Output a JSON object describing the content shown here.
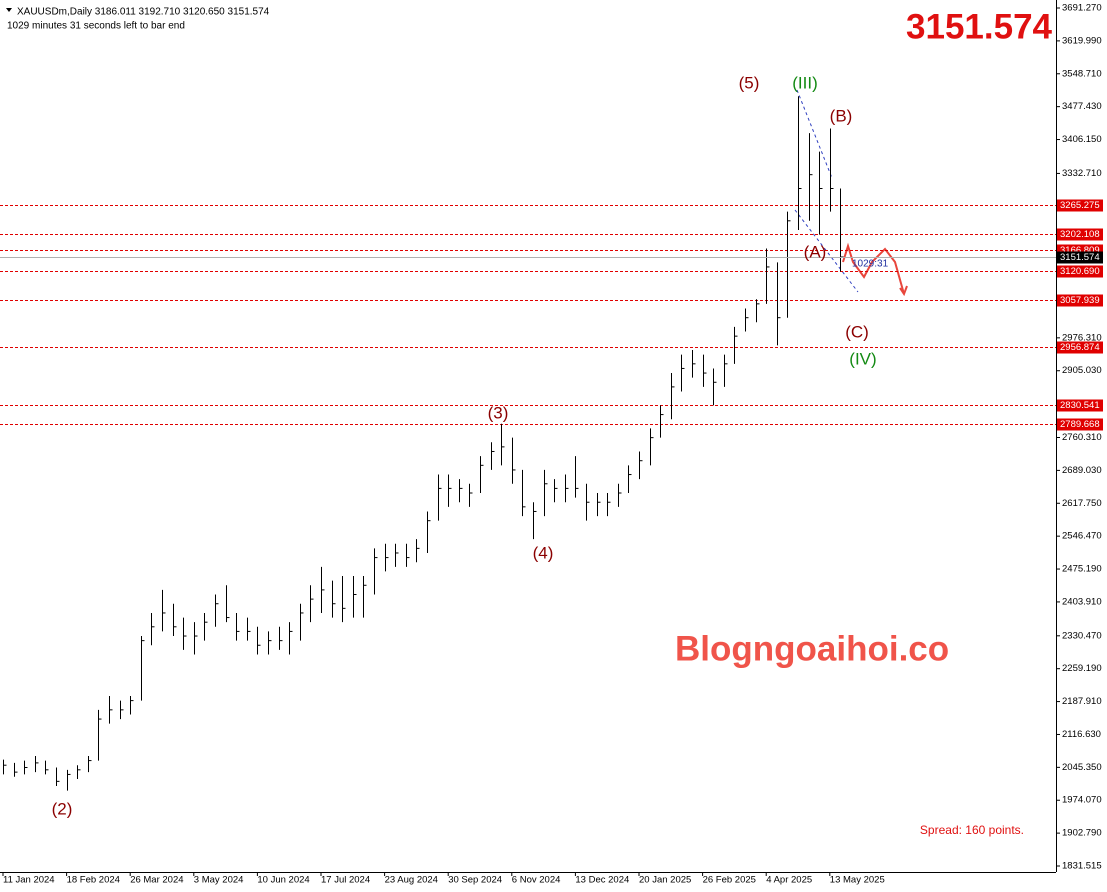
{
  "chart_data": {
    "type": "ohlc",
    "header": "XAUUSDm,Daily  3186.011 3192.710 3120.650 3151.574",
    "subheader": "1029 minutes 31 seconds left to bar end",
    "watermark": "Blogngoaihoi.co",
    "spread": "Spread: 160 points.",
    "countdown": "1029:31",
    "color": "#000000",
    "level_color": "#e00000",
    "current_color": "#000000",
    "ylim": [
      1831.515,
      3691.27
    ],
    "yticks": [
      {
        "value": 3691.27,
        "label": "3691.270"
      },
      {
        "value": 3619.99,
        "label": "3619.990"
      },
      {
        "value": 3548.71,
        "label": "3548.710"
      },
      {
        "value": 3477.43,
        "label": "3477.430"
      },
      {
        "value": 3406.15,
        "label": "3406.150"
      },
      {
        "value": 3332.71,
        "label": "3332.710"
      },
      {
        "value": 2976.31,
        "label": "2976.310"
      },
      {
        "value": 2905.03,
        "label": "2905.030"
      },
      {
        "value": 2760.31,
        "label": "2760.310"
      },
      {
        "value": 2689.03,
        "label": "2689.030"
      },
      {
        "value": 2617.75,
        "label": "2617.750"
      },
      {
        "value": 2546.47,
        "label": "2546.470"
      },
      {
        "value": 2475.19,
        "label": "2475.190"
      },
      {
        "value": 2403.91,
        "label": "2403.910"
      },
      {
        "value": 2330.47,
        "label": "2330.470"
      },
      {
        "value": 2259.19,
        "label": "2259.190"
      },
      {
        "value": 2187.91,
        "label": "2187.910"
      },
      {
        "value": 2116.63,
        "label": "2116.630"
      },
      {
        "value": 2045.35,
        "label": "2045.350"
      },
      {
        "value": 1974.07,
        "label": "1974.070"
      },
      {
        "value": 1902.79,
        "label": "1902.790"
      },
      1831.515
    ],
    "levels": [
      3265.275,
      3202.108,
      3166.809,
      {
        "value": 3120.69,
        "label": "3120.690"
      },
      3057.939,
      2956.874,
      2830.541,
      2789.668
    ],
    "categories": [
      "11 Jan 2024",
      null,
      null,
      null,
      null,
      null,
      "18 Feb 2024",
      null,
      null,
      null,
      null,
      null,
      "26 Mar 2024",
      null,
      null,
      null,
      null,
      null,
      "3 May 2024",
      null,
      null,
      null,
      null,
      null,
      "10 Jun 2024",
      null,
      null,
      null,
      null,
      null,
      "17 Jul 2024",
      null,
      null,
      null,
      null,
      null,
      "23 Aug 2024",
      null,
      null,
      null,
      null,
      null,
      "30 Sep 2024",
      null,
      null,
      null,
      null,
      null,
      "6 Nov 2024",
      null,
      null,
      null,
      null,
      null,
      "13 Dec 2024",
      null,
      null,
      null,
      null,
      null,
      "20 Jan 2025",
      null,
      null,
      null,
      null,
      null,
      "26 Feb 2025",
      null,
      null,
      null,
      null,
      null,
      "4 Apr 2025",
      null,
      null,
      null,
      null,
      null,
      "13 May 2025",
      null
    ],
    "high": [
      2062,
      2055,
      2060,
      2070,
      2060,
      2045,
      2040,
      2050,
      2070,
      2170,
      2200,
      2190,
      2200,
      2330,
      2380,
      2430,
      2400,
      2370,
      2360,
      2380,
      2420,
      2440,
      2380,
      2370,
      2350,
      2340,
      2350,
      2360,
      2400,
      2440,
      2480,
      2450,
      2460,
      2460,
      2460,
      2520,
      2530,
      2530,
      2530,
      2540,
      2600,
      2680,
      2680,
      2670,
      2660,
      2720,
      2750,
      2790,
      2760,
      2690,
      2620,
      2690,
      2670,
      2680,
      2720,
      2660,
      2640,
      2640,
      2660,
      2700,
      2730,
      2780,
      2830,
      2900,
      2940,
      2950,
      2940,
      2910,
      2940,
      3000,
      3040,
      3060,
      3170,
      3140,
      3250,
      3500,
      3420,
      3380,
      3430,
      3300
    ],
    "low": [
      2030,
      2025,
      2030,
      2035,
      2030,
      2005,
      1995,
      2020,
      2035,
      2060,
      2140,
      2150,
      2160,
      2190,
      2310,
      2340,
      2330,
      2300,
      2290,
      2320,
      2350,
      2360,
      2320,
      2320,
      2290,
      2290,
      2300,
      2290,
      2320,
      2360,
      2380,
      2370,
      2360,
      2370,
      2370,
      2420,
      2470,
      2480,
      2480,
      2490,
      2510,
      2580,
      2610,
      2620,
      2610,
      2640,
      2690,
      2700,
      2660,
      2590,
      2540,
      2590,
      2620,
      2620,
      2630,
      2580,
      2590,
      2590,
      2610,
      2640,
      2670,
      2700,
      2760,
      2800,
      2860,
      2890,
      2870,
      2830,
      2870,
      2920,
      2990,
      3010,
      3050,
      2960,
      3020,
      3210,
      3230,
      3200,
      3250,
      3120
    ],
    "close": [
      2050,
      2035,
      2045,
      2055,
      2040,
      2015,
      2030,
      2040,
      2060,
      2150,
      2170,
      2170,
      2190,
      2320,
      2350,
      2380,
      2350,
      2330,
      2330,
      2360,
      2400,
      2370,
      2340,
      2340,
      2310,
      2320,
      2320,
      2340,
      2380,
      2410,
      2430,
      2400,
      2390,
      2420,
      2440,
      2500,
      2500,
      2510,
      2500,
      2520,
      2580,
      2650,
      2650,
      2650,
      2640,
      2700,
      2730,
      2740,
      2690,
      2610,
      2600,
      2660,
      2650,
      2650,
      2650,
      2620,
      2620,
      2620,
      2640,
      2680,
      2710,
      2760,
      2810,
      2870,
      2910,
      2920,
      2900,
      2880,
      2920,
      2980,
      3020,
      3050,
      3130,
      3020,
      3230,
      3300,
      3330,
      3300,
      3300,
      3151.574
    ],
    "annotations": [
      {
        "text": "(2)",
        "color": "#8b0000"
      },
      {
        "text": "(3)",
        "color": "#8b0000"
      },
      {
        "text": "(4)",
        "color": "#8b0000"
      },
      {
        "text": "(5)",
        "color": "#8b0000"
      },
      {
        "text": "(III)",
        "color": "#138a13"
      },
      {
        "text": "(B)",
        "color": "#8b0000"
      },
      {
        "text": "(A)",
        "color": "#8b0000"
      },
      {
        "text": "(C)",
        "color": "#8b0000"
      },
      {
        "text": "(IV)",
        "color": "#138a13"
      }
    ]
  }
}
